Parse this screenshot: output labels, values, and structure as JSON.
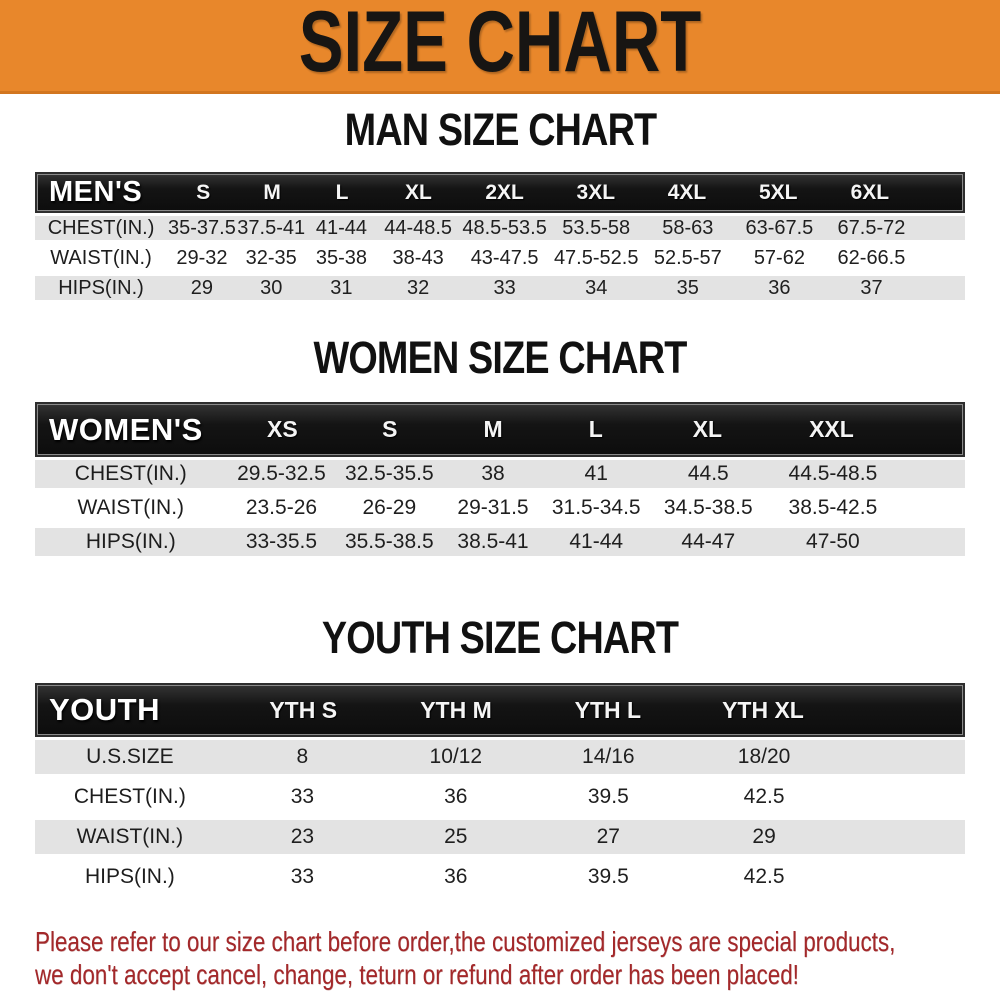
{
  "banner": {
    "title": "SIZE CHART"
  },
  "colors": {
    "banner_bg": "#E8872B",
    "header_bar_bg": "#141414",
    "stripe_row_bg": "#E3E3E3",
    "footer_text": "#A3282A"
  },
  "sections": [
    {
      "heading": "MAN SIZE CHART",
      "corner_label": "MEN'S",
      "columns": [
        "S",
        "M",
        "L",
        "XL",
        "2XL",
        "3XL",
        "4XL",
        "5XL",
        "6XL"
      ],
      "rows": [
        {
          "label": "CHEST(IN.)",
          "values": [
            "35-37.5",
            "37.5-41",
            "41-44",
            "44-48.5",
            "48.5-53.5",
            "53.5-58",
            "58-63",
            "63-67.5",
            "67.5-72"
          ]
        },
        {
          "label": "WAIST(IN.)",
          "values": [
            "29-32",
            "32-35",
            "35-38",
            "38-43",
            "43-47.5",
            "47.5-52.5",
            "52.5-57",
            "57-62",
            "62-66.5"
          ]
        },
        {
          "label": "HIPS(IN.)",
          "values": [
            "29",
            "30",
            "31",
            "32",
            "33",
            "34",
            "35",
            "36",
            "37"
          ]
        }
      ]
    },
    {
      "heading": "WOMEN SIZE CHART",
      "corner_label": "WOMEN'S",
      "columns": [
        "XS",
        "S",
        "M",
        "L",
        "XL",
        "XXL"
      ],
      "rows": [
        {
          "label": "CHEST(IN.)",
          "values": [
            "29.5-32.5",
            "32.5-35.5",
            "38",
            "41",
            "44.5",
            "44.5-48.5"
          ]
        },
        {
          "label": "WAIST(IN.)",
          "values": [
            "23.5-26",
            "26-29",
            "29-31.5",
            "31.5-34.5",
            "34.5-38.5",
            "38.5-42.5"
          ]
        },
        {
          "label": "HIPS(IN.)",
          "values": [
            "33-35.5",
            "35.5-38.5",
            "38.5-41",
            "41-44",
            "44-47",
            "47-50"
          ]
        }
      ]
    },
    {
      "heading": "YOUTH SIZE CHART",
      "corner_label": "YOUTH",
      "columns": [
        "YTH S",
        "YTH M",
        "YTH L",
        "YTH XL"
      ],
      "rows": [
        {
          "label": "U.S.SIZE",
          "values": [
            "8",
            "10/12",
            "14/16",
            "18/20"
          ]
        },
        {
          "label": "CHEST(IN.)",
          "values": [
            "33",
            "36",
            "39.5",
            "42.5"
          ]
        },
        {
          "label": "WAIST(IN.)",
          "values": [
            "23",
            "25",
            "27",
            "29"
          ]
        },
        {
          "label": "HIPS(IN.)",
          "values": [
            "33",
            "36",
            "39.5",
            "42.5"
          ]
        }
      ]
    }
  ],
  "footer": {
    "lines": [
      "Please refer to our size chart before order,the customized jerseys are special products,",
      "we don't accept cancel, change, teturn or refund after order has been placed!"
    ]
  }
}
